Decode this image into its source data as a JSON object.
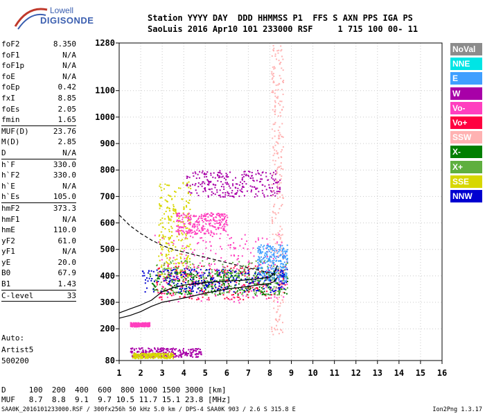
{
  "logo": {
    "line1": "Lowell",
    "line2": "DIGISONDE"
  },
  "header": {
    "line1": "Station YYYY DAY  DDD HHMMSS P1  FFS S AXN PPS IGA PS",
    "line2": "SaoLuis 2016 Apr10 101 233000 RSF     1 715 100 00- 11"
  },
  "params": [
    {
      "k": "foF2",
      "v": "8.350"
    },
    {
      "k": "foF1",
      "v": "N/A"
    },
    {
      "k": "foF1p",
      "v": "N/A"
    },
    {
      "k": "foE",
      "v": "N/A"
    },
    {
      "k": "foEp",
      "v": "0.42"
    },
    {
      "k": "fxI",
      "v": "8.85"
    },
    {
      "k": "foEs",
      "v": "2.05"
    },
    {
      "k": "fmin",
      "v": "1.65"
    },
    {
      "sep": true
    },
    {
      "k": "MUF(D)",
      "v": "23.76"
    },
    {
      "k": "M(D)",
      "v": "2.85"
    },
    {
      "k": "D",
      "v": "N/A"
    },
    {
      "sep": true
    },
    {
      "k": "h`F",
      "v": "330.0"
    },
    {
      "k": "h`F2",
      "v": "330.0"
    },
    {
      "k": "h`E",
      "v": "N/A"
    },
    {
      "k": "h`Es",
      "v": "105.0"
    },
    {
      "sep": true
    },
    {
      "k": "hmF2",
      "v": "373.3"
    },
    {
      "k": "hmF1",
      "v": "N/A"
    },
    {
      "k": "hmE",
      "v": "110.0"
    },
    {
      "k": "yF2",
      "v": "61.0"
    },
    {
      "k": "yF1",
      "v": "N/A"
    },
    {
      "k": "yE",
      "v": "20.0"
    },
    {
      "k": "B0",
      "v": "67.9"
    },
    {
      "k": "B1",
      "v": "1.43"
    },
    {
      "sep": true
    },
    {
      "k": "C-level",
      "v": "33"
    },
    {
      "sep": true
    }
  ],
  "auto": {
    "l1": "Auto:",
    "l2": "Artist5",
    "l3": "500200"
  },
  "legend": [
    {
      "label": "NoVal",
      "color": "#8c8c8c"
    },
    {
      "label": "NNE",
      "color": "#00e5e5"
    },
    {
      "label": "E",
      "color": "#3f9fff"
    },
    {
      "label": "W",
      "color": "#a800a8"
    },
    {
      "label": "Vo-",
      "color": "#ff3fbf"
    },
    {
      "label": "Vo+",
      "color": "#ff0040"
    },
    {
      "label": "SSW",
      "color": "#ffb2b2"
    },
    {
      "label": "X-",
      "color": "#007f00"
    },
    {
      "label": "X+",
      "color": "#5faf3f"
    },
    {
      "label": "SSE",
      "color": "#d7d700"
    },
    {
      "label": "NNW",
      "color": "#0000d0"
    }
  ],
  "bottom": {
    "d_row": "D     100  200  400  600  800 1000 1500 3000 [km]",
    "muf_row": "MUF   8.7  8.8  9.1  9.7 10.5 11.7 15.1 23.8 [MHz]"
  },
  "footer": {
    "left": "SAA0K_2016101233000.RSF / 300fx256h 50 kHz 5.0 km / DPS-4 SAA0K 903 / 2.6 S 315.8 E",
    "right": "Ion2Png 1.3.17"
  },
  "chart_data": {
    "type": "scatter",
    "xlim": [
      1,
      16
    ],
    "ylim": [
      80,
      1280
    ],
    "x_ticks": [
      1,
      2,
      3,
      4,
      5,
      6,
      7,
      8,
      9,
      10,
      11,
      12,
      13,
      14,
      15,
      16
    ],
    "y_ticks": [
      80,
      200,
      300,
      400,
      500,
      600,
      700,
      800,
      900,
      1000,
      1100,
      1280
    ],
    "grid": true,
    "curves": [
      {
        "name": "virtual-height-trace",
        "x": [
          1,
          1.5,
          2,
          2.5,
          3,
          3.5,
          4,
          4.5,
          5,
          5.5,
          6,
          6.5,
          7,
          7.5,
          8,
          8.2,
          8.35
        ],
        "y": [
          240,
          250,
          265,
          285,
          300,
          308,
          316,
          325,
          335,
          342,
          350,
          355,
          360,
          366,
          372,
          378,
          395
        ]
      },
      {
        "name": "profile-upper",
        "x": [
          1,
          1.5,
          2,
          2.5,
          3,
          3.5,
          4,
          5,
          6,
          7,
          7.5,
          8,
          8.2,
          8.35
        ],
        "y": [
          260,
          275,
          290,
          308,
          340,
          355,
          365,
          375,
          380,
          385,
          390,
          395,
          410,
          440
        ]
      },
      {
        "name": "profile-dashed",
        "x": [
          1,
          1.5,
          2,
          2.5,
          3,
          3.5,
          4,
          5,
          6,
          7,
          8,
          8.35
        ],
        "y": [
          630,
          590,
          560,
          535,
          515,
          500,
          490,
          470,
          450,
          430,
          412,
          400
        ]
      }
    ],
    "point_groups": [
      {
        "color": "#d7d700",
        "x_range": [
          2.8,
          4.3
        ],
        "y_range": [
          390,
          760
        ]
      },
      {
        "color": "#a800a8",
        "x_range": [
          4.1,
          8.5
        ],
        "y_range": [
          700,
          800
        ]
      },
      {
        "color": "#ff3fbf",
        "x_range": [
          3.6,
          6.0
        ],
        "y_range": [
          560,
          640
        ]
      },
      {
        "color": "#ff0040",
        "x_range": [
          2.7,
          8.8
        ],
        "y_range": [
          310,
          440
        ]
      },
      {
        "color": "#ff3fbf",
        "x_range": [
          2.6,
          8.8
        ],
        "y_range": [
          300,
          560
        ]
      },
      {
        "color": "#ffb2b2",
        "x_range": [
          8.05,
          8.6
        ],
        "y_range": [
          180,
          1280
        ]
      },
      {
        "color": "#007f00",
        "x_range": [
          2.4,
          8.8
        ],
        "y_range": [
          330,
          420
        ]
      },
      {
        "color": "#5faf3f",
        "x_range": [
          2.6,
          8.8
        ],
        "y_range": [
          330,
          460
        ]
      },
      {
        "color": "#3f9fff",
        "x_range": [
          7.4,
          8.8
        ],
        "y_range": [
          380,
          520
        ]
      },
      {
        "color": "#0000d0",
        "x_range": [
          2.0,
          8.8
        ],
        "y_range": [
          340,
          430
        ]
      },
      {
        "color": "#ff3fbf",
        "x_range": [
          1.5,
          2.4
        ],
        "y_range": [
          210,
          225
        ]
      },
      {
        "color": "#a800a8",
        "x_range": [
          1.5,
          4.8
        ],
        "y_range": [
          95,
          130
        ]
      },
      {
        "color": "#d7d700",
        "x_range": [
          1.6,
          3.5
        ],
        "y_range": [
          90,
          110
        ]
      }
    ]
  }
}
